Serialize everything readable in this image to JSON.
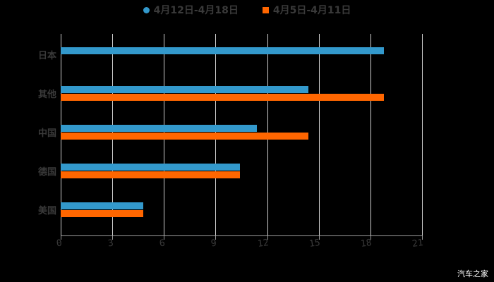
{
  "chart_data": {
    "type": "bar",
    "orientation": "horizontal",
    "title": "",
    "categories": [
      "日本",
      "其他",
      "中国",
      "德国",
      "美国"
    ],
    "series": [
      {
        "name": "4月12日-4月18日",
        "color": "#3399cc",
        "values": [
          18.8,
          14.4,
          11.4,
          10.4,
          4.8
        ]
      },
      {
        "name": "4月5日-4月11日",
        "color": "#ff6600",
        "values": [
          null,
          18.8,
          14.4,
          10.4,
          4.8
        ]
      }
    ],
    "xlim": [
      0,
      21
    ],
    "xticks": [
      "0",
      "3",
      "6",
      "9",
      "12",
      "15",
      "18",
      "21"
    ],
    "grid": true,
    "legend_position": "top"
  },
  "legend": [
    {
      "label": "4月12日-4月18日",
      "color": "#3399cc"
    },
    {
      "label": "4月5日-4月11日",
      "color": "#ff6600"
    }
  ],
  "watermark": "汽车之家"
}
